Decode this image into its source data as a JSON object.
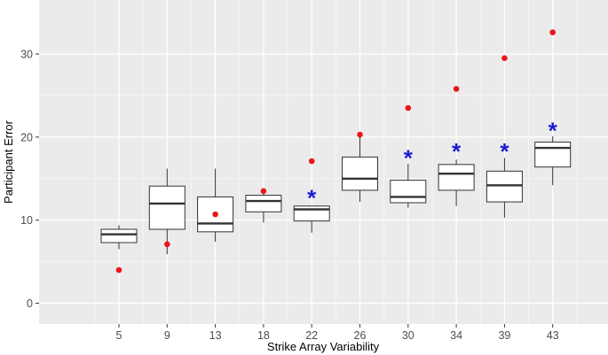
{
  "chart_data": {
    "type": "box",
    "title": "",
    "xlabel": "Strike Array Variability",
    "ylabel": "Participant Error",
    "ylim": [
      -2.5,
      36.5
    ],
    "yticks": [
      0,
      10,
      20,
      30
    ],
    "grid": true,
    "categories": [
      "5",
      "9",
      "13",
      "18",
      "22",
      "26",
      "30",
      "34",
      "39",
      "43"
    ],
    "boxes": [
      {
        "min": 6.5,
        "q1": 7.3,
        "median": 8.3,
        "q3": 8.9,
        "max": 9.4
      },
      {
        "min": 5.9,
        "q1": 8.9,
        "median": 12.0,
        "q3": 14.1,
        "max": 16.2
      },
      {
        "min": 7.4,
        "q1": 8.6,
        "median": 9.6,
        "q3": 12.8,
        "max": 16.2
      },
      {
        "min": 9.7,
        "q1": 11.0,
        "median": 12.3,
        "q3": 13.0,
        "max": 13.5
      },
      {
        "min": 8.5,
        "q1": 9.9,
        "median": 11.3,
        "q3": 11.7,
        "max": 11.7
      },
      {
        "min": 12.2,
        "q1": 13.6,
        "median": 15.0,
        "q3": 17.6,
        "max": 20.3
      },
      {
        "min": 11.5,
        "q1": 12.1,
        "median": 12.8,
        "q3": 14.8,
        "max": 16.8
      },
      {
        "min": 11.7,
        "q1": 13.6,
        "median": 15.6,
        "q3": 16.7,
        "max": 17.3
      },
      {
        "min": 10.3,
        "q1": 12.2,
        "median": 14.2,
        "q3": 15.9,
        "max": 17.5
      },
      {
        "min": 14.2,
        "q1": 16.4,
        "median": 18.7,
        "q3": 19.4,
        "max": 20.1
      }
    ],
    "red_points": [
      4.0,
      7.1,
      10.7,
      13.5,
      17.1,
      20.3,
      23.5,
      25.8,
      29.5,
      32.6
    ],
    "asterisks": [
      {
        "category": "22",
        "y": 13.0
      },
      {
        "category": "30",
        "y": 17.8
      },
      {
        "category": "34",
        "y": 18.6
      },
      {
        "category": "39",
        "y": 18.6
      },
      {
        "category": "43",
        "y": 21.1
      }
    ],
    "colors": {
      "panel": "#ebebeb",
      "grid_major": "#ffffff",
      "grid_minor": "#f5f5f5",
      "box_fill": "#ffffff",
      "box_line": "#333333",
      "red_point": "#e8171b",
      "asterisk": "#1b1bd0",
      "text": "#4d4d4d",
      "title_text": "#000000"
    }
  }
}
